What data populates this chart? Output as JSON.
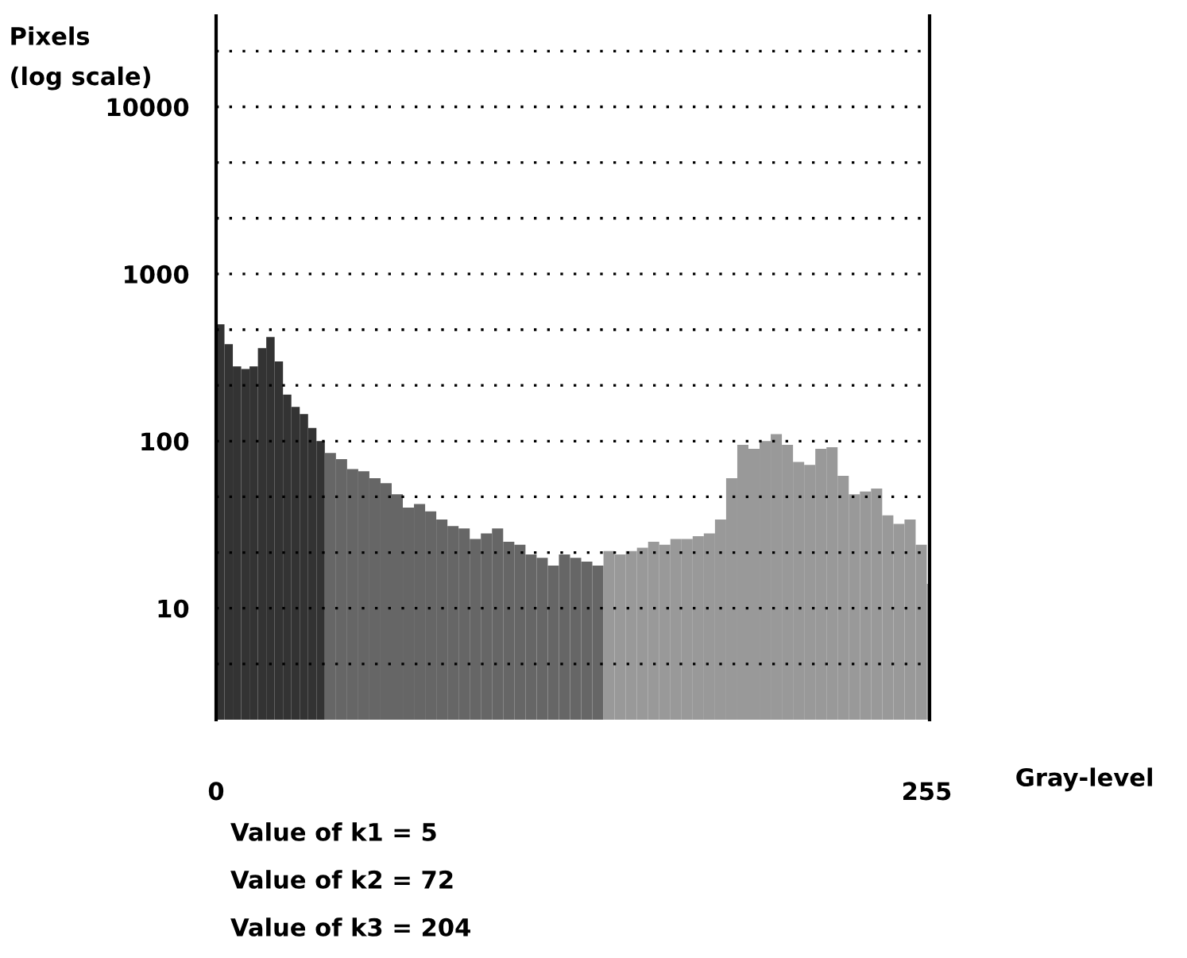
{
  "chart_data": {
    "type": "histogram",
    "xlabel": "Gray-level",
    "ylabel": "Pixels\n(log scale)",
    "bins": [
      0,
      3,
      6,
      9,
      12,
      15,
      18,
      21,
      24,
      27,
      30,
      33,
      36,
      39,
      43,
      47,
      51,
      55,
      59,
      63,
      67,
      71,
      75,
      79,
      83,
      87,
      91,
      95,
      99,
      103,
      107,
      111,
      115,
      119,
      123,
      127,
      131,
      135,
      139,
      143,
      147,
      151,
      155,
      159,
      163,
      167,
      171,
      175,
      179,
      183,
      187,
      191,
      195,
      199,
      203,
      207,
      211,
      215,
      219,
      223,
      227,
      231,
      235,
      239,
      243,
      247,
      251,
      255,
      256
    ],
    "values": [
      500,
      380,
      280,
      270,
      280,
      360,
      420,
      300,
      190,
      160,
      145,
      120,
      100,
      85,
      78,
      68,
      66,
      60,
      56,
      48,
      40,
      42,
      38,
      34,
      31,
      30,
      26,
      28,
      30,
      25,
      24,
      21,
      20,
      18,
      21,
      20,
      19,
      18,
      22,
      21,
      22,
      23,
      25,
      24,
      26,
      26,
      27,
      28,
      34,
      60,
      95,
      90,
      100,
      110,
      95,
      75,
      72,
      90,
      92,
      62,
      48,
      50,
      52,
      36,
      32,
      34,
      24,
      14
    ],
    "colors": [
      "#333333",
      "#333333",
      "#333333",
      "#333333",
      "#333333",
      "#333333",
      "#333333",
      "#333333",
      "#333333",
      "#333333",
      "#333333",
      "#333333",
      "#333333",
      "#666666",
      "#666666",
      "#666666",
      "#666666",
      "#666666",
      "#666666",
      "#666666",
      "#666666",
      "#666666",
      "#666666",
      "#666666",
      "#666666",
      "#666666",
      "#666666",
      "#666666",
      "#666666",
      "#666666",
      "#666666",
      "#666666",
      "#666666",
      "#666666",
      "#666666",
      "#666666",
      "#666666",
      "#666666",
      "#999999",
      "#999999",
      "#999999",
      "#999999",
      "#999999",
      "#999999",
      "#999999",
      "#999999",
      "#999999",
      "#999999",
      "#999999",
      "#999999",
      "#999999",
      "#999999",
      "#999999",
      "#999999",
      "#999999",
      "#999999",
      "#999999",
      "#999999",
      "#999999",
      "#999999",
      "#999999",
      "#999999",
      "#999999",
      "#999999",
      "#999999",
      "#999999",
      "#999999",
      "#999999"
    ],
    "log": "y",
    "xlim": [
      0,
      256
    ],
    "xticks": [
      0,
      255
    ],
    "ylim": [
      2.154,
      35000
    ],
    "yticks": [
      {
        "value": 4.642,
        "label": null
      },
      10,
      {
        "value": 21.54,
        "label": null
      },
      {
        "value": 46.42,
        "label": null
      },
      100,
      {
        "value": 215.4,
        "label": null
      },
      {
        "value": 464.2,
        "label": null
      },
      1000,
      {
        "value": 2154,
        "label": null
      },
      {
        "value": 4642,
        "label": null
      },
      10000,
      {
        "value": 21540,
        "label": null
      }
    ],
    "grid": "y",
    "annotations": [
      "Value of k1 = 5",
      "Value of k2 = 72",
      "Value of k3 = 204"
    ]
  }
}
